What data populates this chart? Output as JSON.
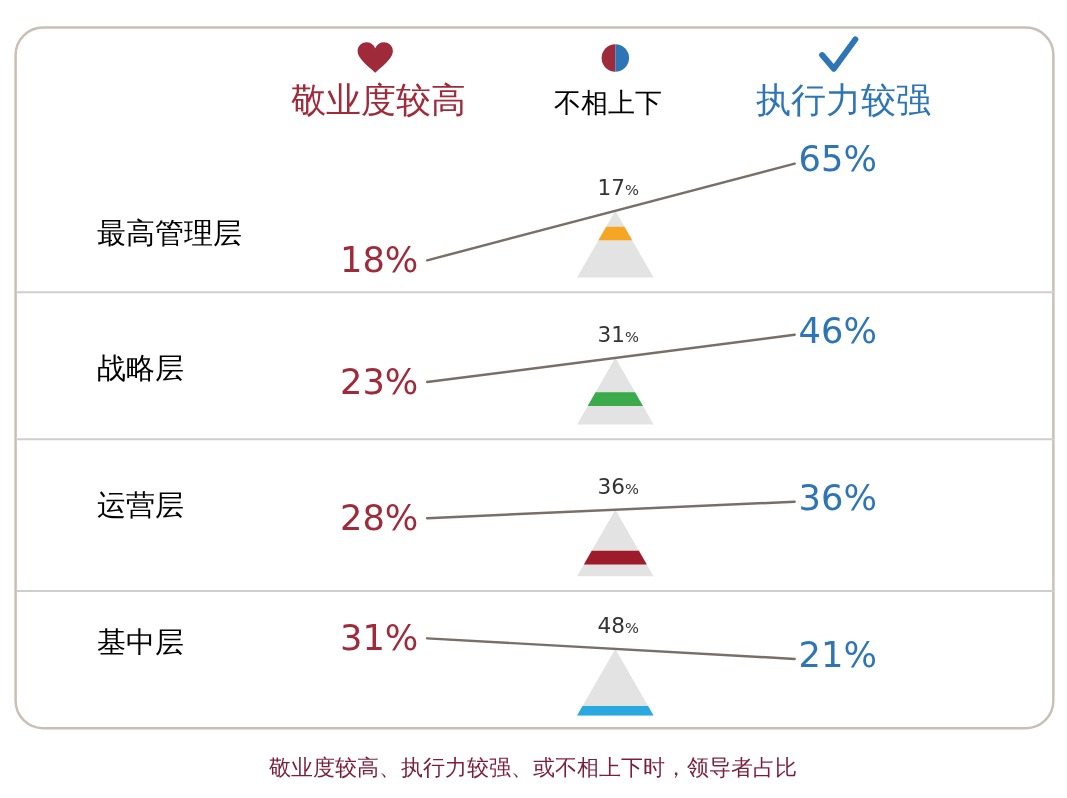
{
  "chart_data": {
    "type": "other",
    "categories": [
      "最高管理层",
      "战略层",
      "运营层",
      "基中层"
    ],
    "series": [
      {
        "name": "敬业度较高",
        "color": "#9e2a3a",
        "values": [
          18,
          23,
          28,
          31
        ],
        "value_labels": [
          "18%",
          "23%",
          "28%",
          "31%"
        ]
      },
      {
        "name": "不相上下",
        "colors": [
          "#f5a623",
          "#3aaa4a",
          "#9e1b2b",
          "#2aa8e0"
        ],
        "values": [
          17,
          31,
          36,
          48
        ],
        "value_labels": [
          "17%",
          "31%",
          "36%",
          "48%"
        ]
      },
      {
        "name": "执行力较强",
        "color": "#2e75b6",
        "values": [
          65,
          46,
          36,
          21
        ],
        "value_labels": [
          "65%",
          "46%",
          "36%",
          "21%"
        ]
      }
    ],
    "legend": "top",
    "annotations": [
      "敬业度较高、执行力较强、或不相上下时，领导者占比"
    ]
  }
}
